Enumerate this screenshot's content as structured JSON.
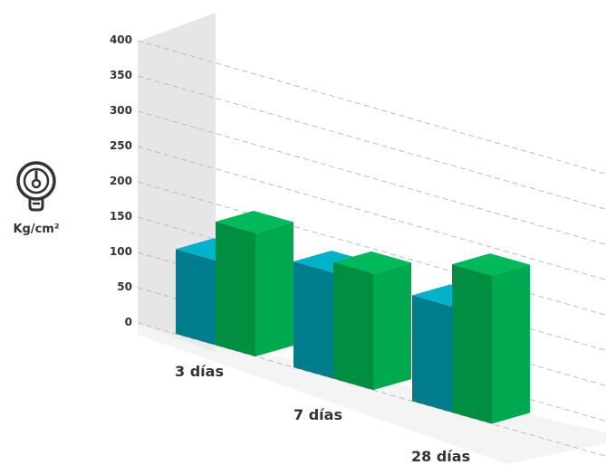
{
  "chart_data": {
    "type": "bar",
    "title": "",
    "xlabel": "",
    "ylabel": "Kg/cm²",
    "ylim": [
      0,
      400
    ],
    "yticks": [
      0,
      50,
      100,
      150,
      200,
      250,
      300,
      350,
      400
    ],
    "categories": [
      "3 días",
      "7 días",
      "28 días"
    ],
    "series": [
      {
        "values": [
          120,
          150,
          150
        ]
      },
      {
        "values": [
          175,
          165,
          210
        ]
      }
    ],
    "grid": true,
    "legend": "none"
  },
  "icon": {
    "name": "pressure-gauge-icon"
  },
  "colors": {
    "series_front": [
      "#00a0b4",
      "#00a94f"
    ],
    "series_top": [
      "#00b3ca",
      "#00b95a"
    ],
    "series_side": [
      "#007d8c",
      "#008f40"
    ],
    "grid": "#bdbdbd",
    "wall": "#e6e6e6",
    "floor": "#ececec",
    "text": "#333333"
  }
}
